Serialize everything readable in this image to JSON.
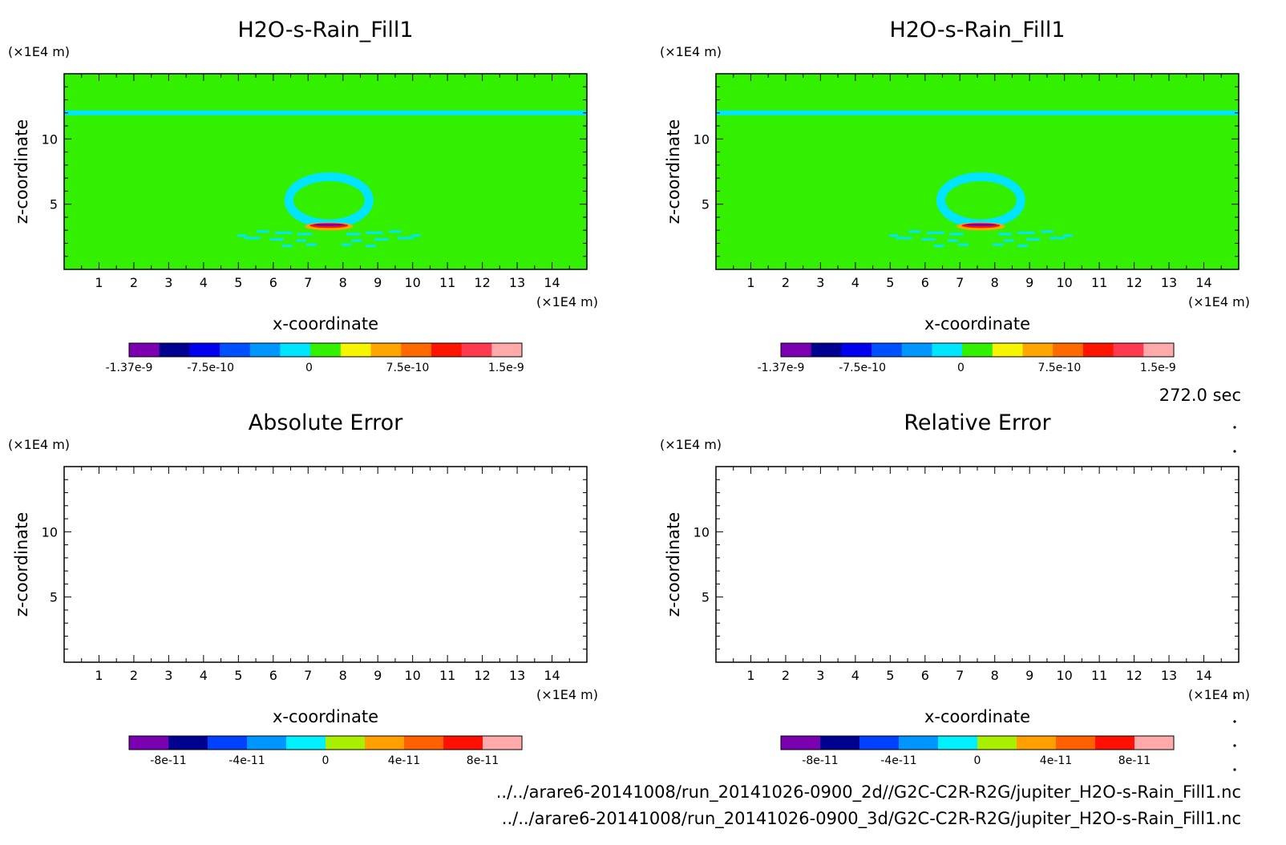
{
  "time_label": "272.0 sec",
  "file_paths": [
    "../../arare6-20141008/run_20141026-0900_2d//G2C-C2R-R2G/jupiter_H2O-s-Rain_Fill1.nc",
    "../../arare6-20141008/run_20141026-0900_3d/G2C-C2R-R2G/jupiter_H2O-s-Rain_Fill1.nc"
  ],
  "colors": {
    "field_scale": [
      "#7a00b0",
      "#000090",
      "#0000ee",
      "#0050ff",
      "#0096ff",
      "#00e5ff",
      "#33f000",
      "#f5f500",
      "#ffa500",
      "#ff6a00",
      "#ff1400",
      "#ff3a50",
      "#ffaaaa"
    ],
    "error_scale": [
      "#7a00b0",
      "#000090",
      "#0040ff",
      "#0096ff",
      "#00f0ff",
      "#a8f000",
      "#ffa000",
      "#ff6000",
      "#ff1000",
      "#ffaaaa"
    ],
    "background_value": "#33f000",
    "bubble": "#00e5ff"
  },
  "chart_data": [
    {
      "type": "heatmap",
      "title": "H2O-s-Rain_Fill1",
      "xlabel": "x-coordinate",
      "ylabel": "z-coordinate",
      "x_unit": "(×1E4 m)",
      "y_unit": "(×1E4 m)",
      "xlim": [
        0,
        15
      ],
      "ylim": [
        0,
        15
      ],
      "x_ticks": [
        1,
        2,
        3,
        4,
        5,
        6,
        7,
        8,
        9,
        10,
        11,
        12,
        13,
        14
      ],
      "y_ticks": [
        5,
        10
      ],
      "features": {
        "background": "0",
        "band_z": 12,
        "bubble_center": [
          7.6,
          5.3
        ],
        "bubble_radius": [
          1.15,
          1.8
        ],
        "peak": [
          7.6,
          3.3
        ]
      },
      "colorbar": {
        "tick_labels": [
          "-1.37e-9",
          "-7.5e-10",
          "0",
          "7.5e-10",
          "1.5e-9"
        ],
        "tick_values": [
          -1.37e-09,
          -7.5e-10,
          0,
          7.5e-10,
          1.5e-09
        ],
        "range": [
          -1.37e-09,
          1.62e-09
        ]
      }
    },
    {
      "type": "heatmap",
      "title": "H2O-s-Rain_Fill1",
      "xlabel": "x-coordinate",
      "ylabel": "z-coordinate",
      "x_unit": "(×1E4 m)",
      "y_unit": "(×1E4 m)",
      "xlim": [
        0,
        15
      ],
      "ylim": [
        0,
        15
      ],
      "x_ticks": [
        1,
        2,
        3,
        4,
        5,
        6,
        7,
        8,
        9,
        10,
        11,
        12,
        13,
        14
      ],
      "y_ticks": [
        5,
        10
      ],
      "features": {
        "background": "0",
        "band_z": 12,
        "bubble_center": [
          7.6,
          5.3
        ],
        "bubble_radius": [
          1.15,
          1.8
        ],
        "peak": [
          7.6,
          3.3
        ]
      },
      "colorbar": {
        "tick_labels": [
          "-1.37e-9",
          "-7.5e-10",
          "0",
          "7.5e-10",
          "1.5e-9"
        ],
        "tick_values": [
          -1.37e-09,
          -7.5e-10,
          0,
          7.5e-10,
          1.5e-09
        ],
        "range": [
          -1.37e-09,
          1.62e-09
        ]
      }
    },
    {
      "type": "heatmap",
      "title": "Absolute Error",
      "xlabel": "x-coordinate",
      "ylabel": "z-coordinate",
      "x_unit": "(×1E4 m)",
      "y_unit": "(×1E4 m)",
      "xlim": [
        0,
        15
      ],
      "ylim": [
        0,
        15
      ],
      "x_ticks": [
        1,
        2,
        3,
        4,
        5,
        6,
        7,
        8,
        9,
        10,
        11,
        12,
        13,
        14
      ],
      "y_ticks": [
        5,
        10
      ],
      "features": {
        "empty": true
      },
      "colorbar": {
        "tick_labels": [
          "-8e-11",
          "-4e-11",
          "0",
          "4e-11",
          "8e-11"
        ],
        "tick_values": [
          -8e-11,
          -4e-11,
          0,
          4e-11,
          8e-11
        ],
        "range": [
          -1e-10,
          1e-10
        ]
      }
    },
    {
      "type": "heatmap",
      "title": "Relative Error",
      "xlabel": "x-coordinate",
      "ylabel": "z-coordinate",
      "x_unit": "(×1E4 m)",
      "y_unit": "(×1E4 m)",
      "xlim": [
        0,
        15
      ],
      "ylim": [
        0,
        15
      ],
      "x_ticks": [
        1,
        2,
        3,
        4,
        5,
        6,
        7,
        8,
        9,
        10,
        11,
        12,
        13,
        14
      ],
      "y_ticks": [
        5,
        10
      ],
      "features": {
        "empty": true
      },
      "colorbar": {
        "tick_labels": [
          "-8e-11",
          "-4e-11",
          "0",
          "4e-11",
          "8e-11"
        ],
        "tick_values": [
          -8e-11,
          -4e-11,
          0,
          4e-11,
          8e-11
        ],
        "range": [
          -1e-10,
          1e-10
        ]
      }
    }
  ]
}
